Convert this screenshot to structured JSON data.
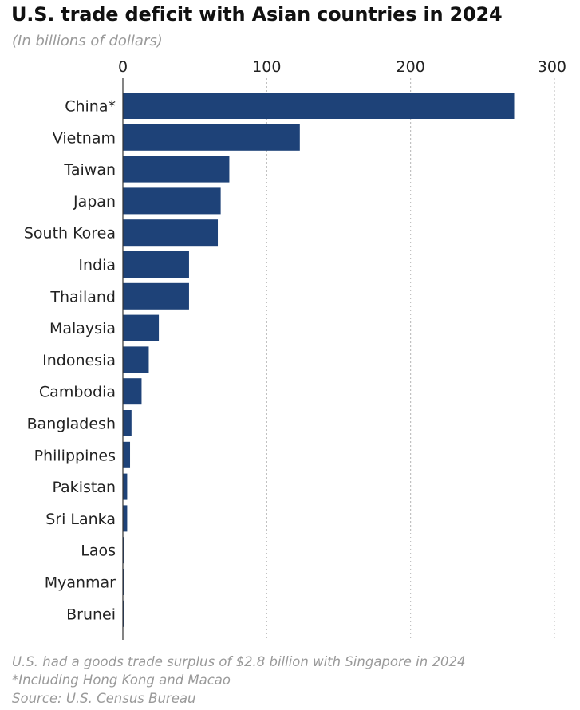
{
  "title": "U.S. trade deficit with Asian countries in 2024",
  "subtitle": "(In billions of dollars)",
  "footnotes": [
    "U.S. had a goods trade surplus of $2.8 billion with Singapore in 2024",
    "*Including Hong Kong and Macao",
    "Source: U.S. Census Bureau"
  ],
  "chart_data": {
    "type": "bar",
    "orientation": "horizontal",
    "categories": [
      "China*",
      "Vietnam",
      "Taiwan",
      "Japan",
      "South Korea",
      "India",
      "Thailand",
      "Malaysia",
      "Indonesia",
      "Cambodia",
      "Bangladesh",
      "Philippines",
      "Pakistan",
      "Sri Lanka",
      "Laos",
      "Myanmar",
      "Brunei"
    ],
    "values": [
      272,
      123,
      74,
      68,
      66,
      46,
      46,
      25,
      18,
      13,
      6,
      5,
      3,
      3,
      1,
      1,
      0.1
    ],
    "xlim": [
      0,
      300
    ],
    "x_ticks": [
      0,
      100,
      200,
      300
    ],
    "x_axis_position": "top",
    "grid": "vertical dotted",
    "bar_color": "#1e4278",
    "legend": "none"
  }
}
